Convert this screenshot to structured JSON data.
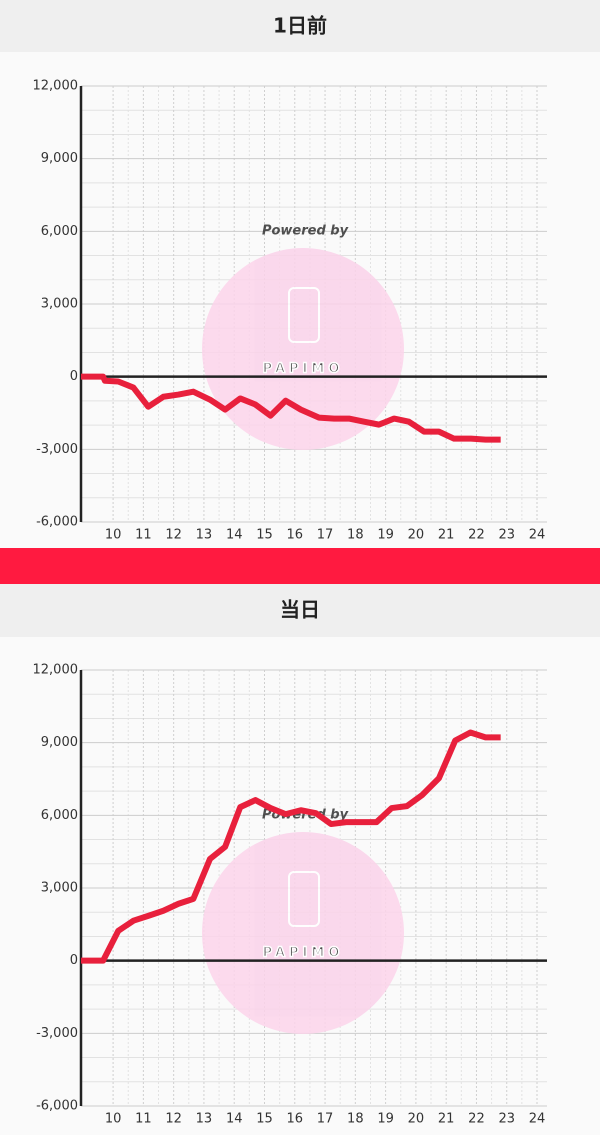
{
  "chart_data": [
    {
      "type": "line",
      "title": "1日前",
      "watermark": "Powered by",
      "logo": "PAPIMO",
      "x": [
        8.94,
        9.67,
        9.73,
        10.17,
        10.67,
        11.16,
        11.66,
        12.16,
        12.65,
        13.2,
        13.7,
        14.2,
        14.7,
        15.2,
        15.7,
        16.2,
        16.8,
        17.3,
        17.79,
        18.29,
        18.78,
        19.28,
        19.77,
        20.27,
        20.76,
        21.26,
        21.82,
        22.3,
        22.8
      ],
      "series": [
        {
          "color": "#e8203c",
          "values": [
            0,
            0,
            -170,
            -200,
            -450,
            -1240,
            -830,
            -740,
            -620,
            -950,
            -1360,
            -900,
            -1150,
            -1610,
            -990,
            -1360,
            -1690,
            -1730,
            -1730,
            -1860,
            -1980,
            -1730,
            -1860,
            -2270,
            -2270,
            -2560,
            -2560,
            -2600,
            -2600
          ]
        }
      ],
      "xlim": [
        8.94,
        24.33
      ],
      "xticks": [
        10,
        11,
        12,
        13,
        14,
        15,
        16,
        17,
        18,
        19,
        20,
        21,
        22,
        23,
        24
      ],
      "ylim": [
        -6000,
        12000
      ],
      "yticks": [
        {
          "value": -6000,
          "label": "-6,000"
        },
        {
          "value": -3000,
          "label": "-3,000"
        },
        0,
        {
          "value": 3000,
          "label": "3,000"
        },
        {
          "value": 6000,
          "label": "6,000"
        },
        {
          "value": 9000,
          "label": "9,000"
        },
        {
          "value": 12000,
          "label": "12,000"
        }
      ],
      "grid": true
    },
    {
      "type": "line",
      "title": "当日",
      "watermark": "Powered by",
      "logo": "PAPIMO",
      "x": [
        8.94,
        9.67,
        10.17,
        10.67,
        11.16,
        11.66,
        12.16,
        12.65,
        13.2,
        13.7,
        14.2,
        14.7,
        15.2,
        15.7,
        16.2,
        16.7,
        17.2,
        17.7,
        18.2,
        18.7,
        19.2,
        19.7,
        20.2,
        20.76,
        21.3,
        21.8,
        22.3,
        22.8
      ],
      "series": [
        {
          "color": "#e8203c",
          "values": [
            0,
            0,
            1230,
            1650,
            1850,
            2060,
            2350,
            2550,
            4200,
            4700,
            6340,
            6630,
            6300,
            6050,
            6210,
            6090,
            5640,
            5720,
            5720,
            5720,
            6300,
            6380,
            6830,
            7530,
            9090,
            9420,
            9220,
            9220
          ]
        }
      ],
      "xlim": [
        8.94,
        24.33
      ],
      "xticks": [
        10,
        11,
        12,
        13,
        14,
        15,
        16,
        17,
        18,
        19,
        20,
        21,
        22,
        23,
        24
      ],
      "ylim": [
        -6000,
        12000
      ],
      "yticks": [
        {
          "value": -6000,
          "label": "-6,000"
        },
        {
          "value": -3000,
          "label": "-3,000"
        },
        0,
        {
          "value": 3000,
          "label": "3,000"
        },
        {
          "value": 6000,
          "label": "6,000"
        },
        {
          "value": 9000,
          "label": "9,000"
        },
        {
          "value": 12000,
          "label": "12,000"
        }
      ],
      "grid": true
    }
  ]
}
